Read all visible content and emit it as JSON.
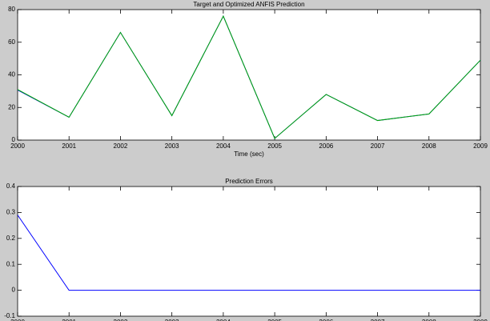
{
  "chart_data": [
    {
      "type": "line",
      "title": "Target and Optimized ANFIS Prediction",
      "xlabel": "Time (sec)",
      "x": [
        2000,
        2001,
        2002,
        2003,
        2004,
        2005,
        2006,
        2007,
        2008,
        2009
      ],
      "series": [
        {
          "name": "Target",
          "color": "#0000ff",
          "values": [
            30.7,
            14,
            66,
            15,
            76,
            1,
            28,
            12,
            16,
            49
          ]
        },
        {
          "name": "Optimized ANFIS Prediction",
          "color": "#00aa00",
          "values": [
            31,
            14,
            66,
            15,
            76,
            1,
            28,
            12,
            16,
            49
          ]
        }
      ],
      "xlim": [
        2000,
        2009
      ],
      "ylim": [
        0,
        80
      ],
      "xticks": [
        2000,
        2001,
        2002,
        2003,
        2004,
        2005,
        2006,
        2007,
        2008,
        2009
      ],
      "yticks": [
        0,
        20,
        40,
        60,
        80
      ]
    },
    {
      "type": "line",
      "title": "Prediction Errors",
      "xlabel": "Time (sec)",
      "x": [
        2000,
        2001,
        2002,
        2003,
        2004,
        2005,
        2006,
        2007,
        2008,
        2009
      ],
      "series": [
        {
          "name": "Error",
          "color": "#0000ff",
          "values": [
            0.29,
            0,
            0,
            0,
            0,
            0,
            0,
            0,
            0,
            0
          ]
        }
      ],
      "xlim": [
        2000,
        2009
      ],
      "ylim": [
        -0.1,
        0.4
      ],
      "xticks": [
        2000,
        2001,
        2002,
        2003,
        2004,
        2005,
        2006,
        2007,
        2008,
        2009
      ],
      "yticks": [
        -0.1,
        0,
        0.1,
        0.2,
        0.3,
        0.4
      ]
    }
  ]
}
